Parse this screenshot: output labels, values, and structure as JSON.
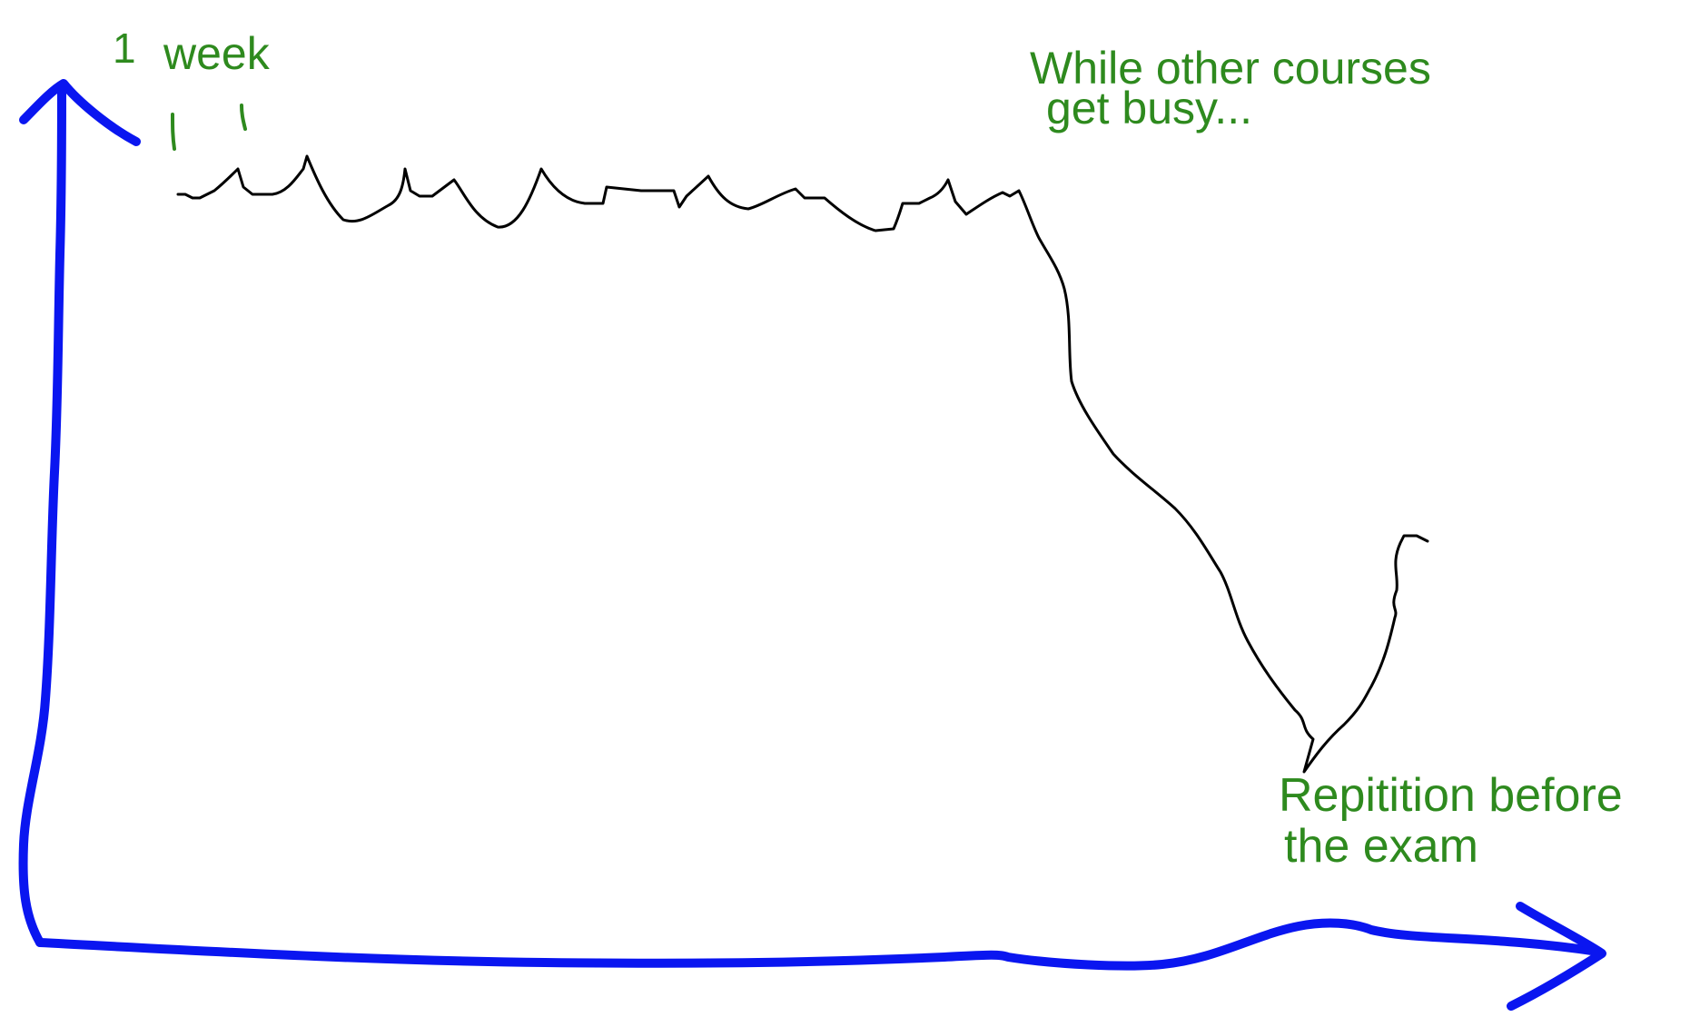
{
  "annotations": {
    "week_number": "1",
    "week_word": "week",
    "busy_line1": "While other courses",
    "busy_line2": "get busy...",
    "repetition_line1": "Repitition before",
    "repetition_line2": "the exam"
  },
  "colors": {
    "axis": "#0a16f0",
    "curve": "#000000",
    "annotation": "#2e8a1e"
  }
}
